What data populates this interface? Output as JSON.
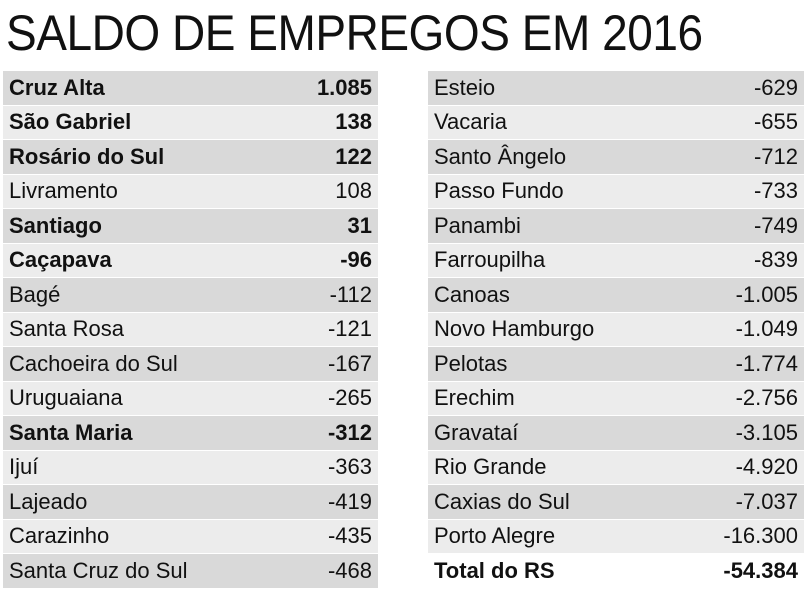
{
  "chart_data": {
    "type": "table",
    "title": "SALDO DE EMPREGOS EM 2016",
    "columns": [
      {
        "rows": [
          {
            "city": "Cruz Alta",
            "value": "1.085",
            "bold": true
          },
          {
            "city": "São Gabriel",
            "value": "138",
            "bold": true
          },
          {
            "city": "Rosário do Sul",
            "value": "122",
            "bold": true
          },
          {
            "city": "Livramento",
            "value": "108",
            "bold": false
          },
          {
            "city": "Santiago",
            "value": "31",
            "bold": true
          },
          {
            "city": "Caçapava",
            "value": "-96",
            "bold": true
          },
          {
            "city": "Bagé",
            "value": "-112",
            "bold": false
          },
          {
            "city": "Santa Rosa",
            "value": "-121",
            "bold": false
          },
          {
            "city": "Cachoeira do Sul",
            "value": "-167",
            "bold": false
          },
          {
            "city": "Uruguaiana",
            "value": "-265",
            "bold": false
          },
          {
            "city": "Santa Maria",
            "value": "-312",
            "bold": true
          },
          {
            "city": "Ijuí",
            "value": "-363",
            "bold": false
          },
          {
            "city": "Lajeado",
            "value": "-419",
            "bold": false
          },
          {
            "city": "Carazinho",
            "value": "-435",
            "bold": false
          },
          {
            "city": "Santa Cruz do Sul",
            "value": "-468",
            "bold": false
          }
        ]
      },
      {
        "rows": [
          {
            "city": "Esteio",
            "value": "-629",
            "bold": false
          },
          {
            "city": "Vacaria",
            "value": "-655",
            "bold": false
          },
          {
            "city": "Santo Ângelo",
            "value": "-712",
            "bold": false
          },
          {
            "city": "Passo Fundo",
            "value": "-733",
            "bold": false
          },
          {
            "city": "Panambi",
            "value": "-749",
            "bold": false
          },
          {
            "city": "Farroupilha",
            "value": "-839",
            "bold": false
          },
          {
            "city": "Canoas",
            "value": "-1.005",
            "bold": false
          },
          {
            "city": "Novo Hamburgo",
            "value": "-1.049",
            "bold": false
          },
          {
            "city": "Pelotas",
            "value": "-1.774",
            "bold": false
          },
          {
            "city": "Erechim",
            "value": "-2.756",
            "bold": false
          },
          {
            "city": "Gravataí",
            "value": "-3.105",
            "bold": false
          },
          {
            "city": "Rio Grande",
            "value": "-4.920",
            "bold": false
          },
          {
            "city": "Caxias do Sul",
            "value": "-7.037",
            "bold": false
          },
          {
            "city": "Porto Alegre",
            "value": "-16.300",
            "bold": false
          }
        ]
      }
    ],
    "total": {
      "label": "Total do RS",
      "value": "-54.384"
    }
  }
}
